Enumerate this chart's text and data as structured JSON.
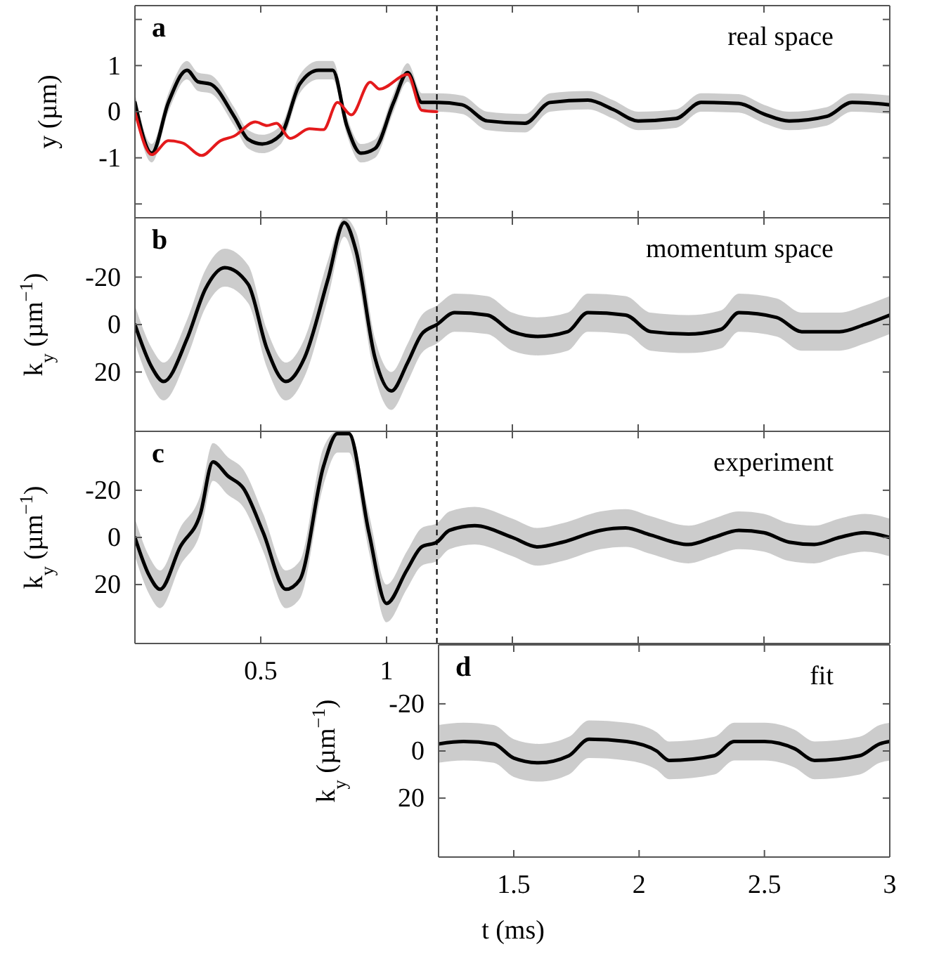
{
  "chart_data": [
    {
      "type": "line",
      "ylabel": "y (µm)",
      "annotations": [
        "a",
        "real space"
      ],
      "xlim": [
        0,
        3
      ],
      "xticks": [
        0.5,
        1,
        1.5,
        2,
        2.5
      ],
      "ylim": [
        -2.3,
        2.3
      ],
      "yticks": [
        {
          "value": -2,
          "label": null
        },
        -1,
        0,
        1,
        {
          "value": 2,
          "label": null
        }
      ],
      "tick_labels": "y",
      "ref_lines": [
        {
          "axis": "x",
          "value": 1.2,
          "label": null,
          "line_style": "dashed",
          "color": "#000000"
        }
      ],
      "series": [
        {
          "color": "#000000",
          "x": [
            0,
            0.067,
            0.133,
            0.207,
            0.25,
            0.3,
            0.394,
            0.45,
            0.506,
            0.58,
            0.655,
            0.73,
            0.786,
            0.842,
            0.898,
            0.954,
            1.028,
            1.084,
            1.14,
            1.2,
            1.3,
            1.4,
            1.55,
            1.65,
            1.8,
            1.9,
            2.0,
            2.15,
            2.25,
            2.4,
            2.5,
            2.6,
            2.75,
            2.85,
            3
          ],
          "values": [
            0.2,
            -0.9,
            0.2,
            0.9,
            0.65,
            0.6,
            -0.1,
            -0.6,
            -0.7,
            -0.5,
            0.6,
            0.9,
            0.9,
            -0.3,
            -0.9,
            -0.8,
            0.2,
            0.85,
            0.2,
            0.2,
            0.15,
            -0.2,
            -0.25,
            0.2,
            0.25,
            0.05,
            -0.2,
            -0.15,
            0.2,
            0.18,
            -0.05,
            -0.2,
            -0.1,
            0.2,
            0.15
          ],
          "lower": [
            0,
            -1.1,
            0,
            0.7,
            0.45,
            0.4,
            -0.3,
            -0.8,
            -0.9,
            -0.7,
            0.4,
            0.7,
            0.7,
            -0.5,
            -1.1,
            -1,
            0,
            0.65,
            0,
            0,
            -0.05,
            -0.4,
            -0.45,
            0,
            0.05,
            -0.15,
            -0.4,
            -0.35,
            0,
            -0.02,
            -0.25,
            -0.4,
            -0.3,
            0,
            -0.05
          ],
          "upper": [
            0.4,
            -0.7,
            0.4,
            1.1,
            0.85,
            0.8,
            0.1,
            -0.4,
            -0.5,
            -0.3,
            0.8,
            1.1,
            1.1,
            -0.1,
            -0.7,
            -0.6,
            0.4,
            1.05,
            0.4,
            0.4,
            0.35,
            0,
            -0.05,
            0.4,
            0.45,
            0.25,
            0,
            0.05,
            0.4,
            0.38,
            0.15,
            0,
            0.1,
            0.4,
            0.35
          ]
        },
        {
          "color": "#e41a1c",
          "x": [
            0,
            0.067,
            0.133,
            0.19,
            0.265,
            0.34,
            0.394,
            0.478,
            0.525,
            0.562,
            0.618,
            0.693,
            0.749,
            0.805,
            0.86,
            0.935,
            0.972,
            1.084,
            1.14,
            1.2
          ],
          "values": [
            0,
            -0.93,
            -0.63,
            -0.68,
            -0.95,
            -0.63,
            -0.53,
            -0.22,
            -0.3,
            -0.25,
            -0.58,
            -0.37,
            -0.39,
            0.2,
            -0.07,
            0.64,
            0.49,
            0.81,
            0.03,
            0
          ]
        }
      ]
    },
    {
      "type": "line",
      "ylabel": "k$_{y}$ (µm$^{−1}$)",
      "annotations": [
        "b",
        "momentum space"
      ],
      "xlim": [
        0,
        3
      ],
      "xticks": [
        0.5,
        1,
        1.5,
        2,
        2.5
      ],
      "ylim": [
        45,
        -45
      ],
      "yticks": [
        -20,
        0,
        20
      ],
      "tick_labels": "y",
      "ref_lines": [
        {
          "axis": "x",
          "value": 1.2,
          "label": null,
          "line_style": "dashed",
          "color": "#000000"
        }
      ],
      "series": [
        {
          "color": "#000000",
          "x": [
            0,
            0.067,
            0.114,
            0.207,
            0.28,
            0.357,
            0.45,
            0.524,
            0.6,
            0.674,
            0.767,
            0.832,
            0.879,
            0.954,
            1.019,
            1.084,
            1.14,
            1.2,
            1.27,
            1.4,
            1.5,
            1.6,
            1.72,
            1.8,
            1.95,
            2.05,
            2.2,
            2.33,
            2.4,
            2.55,
            2.65,
            2.8,
            2.9,
            3
          ],
          "values": [
            0,
            18,
            24,
            6,
            -15,
            -24,
            -17,
            10,
            24,
            14,
            -19,
            -43,
            -31,
            14,
            28,
            16,
            4,
            0,
            -5,
            -4,
            3,
            5,
            3,
            -5,
            -4,
            3,
            4,
            2,
            -5,
            -3,
            3,
            3,
            0,
            -4
          ],
          "lower": [
            -8,
            10,
            16,
            -2,
            -23,
            -32,
            -25,
            2,
            16,
            6,
            -27,
            -45,
            -39,
            6,
            20,
            8,
            -4,
            -8,
            -13,
            -12,
            -5,
            -3,
            -5,
            -13,
            -12,
            -5,
            -4,
            -6,
            -13,
            -11,
            -5,
            -5,
            -8,
            -12
          ],
          "upper": [
            8,
            26,
            32,
            14,
            -7,
            -16,
            -9,
            18,
            32,
            22,
            -11,
            -37,
            -23,
            22,
            36,
            24,
            12,
            8,
            3,
            4,
            11,
            13,
            11,
            3,
            4,
            11,
            12,
            10,
            3,
            5,
            11,
            11,
            8,
            4
          ]
        }
      ]
    },
    {
      "type": "line",
      "ylabel": "k$_{y}$ (µm$^{−1}$)",
      "annotations": [
        "c",
        "experiment"
      ],
      "xlim": [
        0,
        3
      ],
      "xticks": [
        0.5,
        1,
        {
          "value": 1.5,
          "label": null
        },
        {
          "value": 2,
          "label": null
        },
        {
          "value": 2.5,
          "label": null
        }
      ],
      "ylim": [
        45,
        -45
      ],
      "yticks": [
        -20,
        0,
        20
      ],
      "ref_lines": [
        {
          "axis": "x",
          "value": 1.2,
          "label": null,
          "line_style": "dashed",
          "color": "#000000"
        }
      ],
      "series": [
        {
          "color": "#000000",
          "x": [
            0,
            0.056,
            0.1,
            0.18,
            0.26,
            0.31,
            0.37,
            0.43,
            0.51,
            0.6,
            0.655,
            0.749,
            0.805,
            0.85,
            0.93,
            1.0,
            1.08,
            1.14,
            1.2,
            1.25,
            1.35,
            1.5,
            1.6,
            1.7,
            1.85,
            1.95,
            2.05,
            2.2,
            2.3,
            2.4,
            2.5,
            2.6,
            2.7,
            2.8,
            2.9,
            3
          ],
          "values": [
            0,
            16,
            22,
            4,
            -10,
            -32,
            -26,
            -21,
            -2,
            22,
            18,
            -30,
            -44,
            -44,
            -2,
            28,
            14,
            4,
            2,
            -3,
            -5,
            0,
            4,
            2,
            -3,
            -4,
            -1,
            3,
            0,
            -3,
            -2,
            2,
            3,
            0,
            -2,
            0
          ],
          "lower": [
            -8,
            8,
            14,
            -4,
            -18,
            -40,
            -34,
            -29,
            -10,
            14,
            10,
            -38,
            -45,
            -45,
            -10,
            20,
            6,
            -4,
            -6,
            -11,
            -13,
            -8,
            -4,
            -6,
            -11,
            -12,
            -9,
            -5,
            -8,
            -11,
            -10,
            -6,
            -5,
            -8,
            -10,
            -8
          ],
          "upper": [
            8,
            24,
            30,
            12,
            -2,
            -24,
            -18,
            -13,
            6,
            30,
            26,
            -22,
            -36,
            -36,
            6,
            36,
            22,
            12,
            10,
            5,
            3,
            8,
            12,
            10,
            5,
            4,
            7,
            11,
            8,
            5,
            6,
            10,
            11,
            8,
            6,
            8
          ]
        }
      ]
    },
    {
      "type": "line",
      "xlabel": "t (ms)",
      "ylabel": "k$_{y}$ (µm$^{−1}$)",
      "annotations": [
        "d",
        "fit"
      ],
      "xlim": [
        1.2,
        3
      ],
      "xticks": [
        1.5,
        2,
        2.5,
        3
      ],
      "ylim": [
        45,
        -45
      ],
      "yticks": [
        -20,
        0,
        20
      ],
      "series": [
        {
          "color": "#000000",
          "x": [
            1.2,
            1.3,
            1.42,
            1.5,
            1.6,
            1.72,
            1.8,
            1.95,
            2.07,
            2.12,
            2.3,
            2.38,
            2.5,
            2.62,
            2.7,
            2.88,
            2.96,
            3
          ],
          "values": [
            -3,
            -4,
            -3,
            3,
            5,
            2,
            -5,
            -4,
            0,
            4,
            2,
            -4,
            -4,
            -1,
            4,
            2,
            -3,
            -4
          ],
          "lower": [
            -11,
            -12,
            -11,
            -5,
            -3,
            -6,
            -13,
            -12,
            -8,
            -4,
            -6,
            -12,
            -12,
            -9,
            -4,
            -6,
            -11,
            -12
          ],
          "upper": [
            5,
            4,
            5,
            11,
            13,
            10,
            3,
            4,
            8,
            12,
            10,
            4,
            4,
            7,
            12,
            10,
            5,
            4
          ]
        }
      ]
    }
  ]
}
